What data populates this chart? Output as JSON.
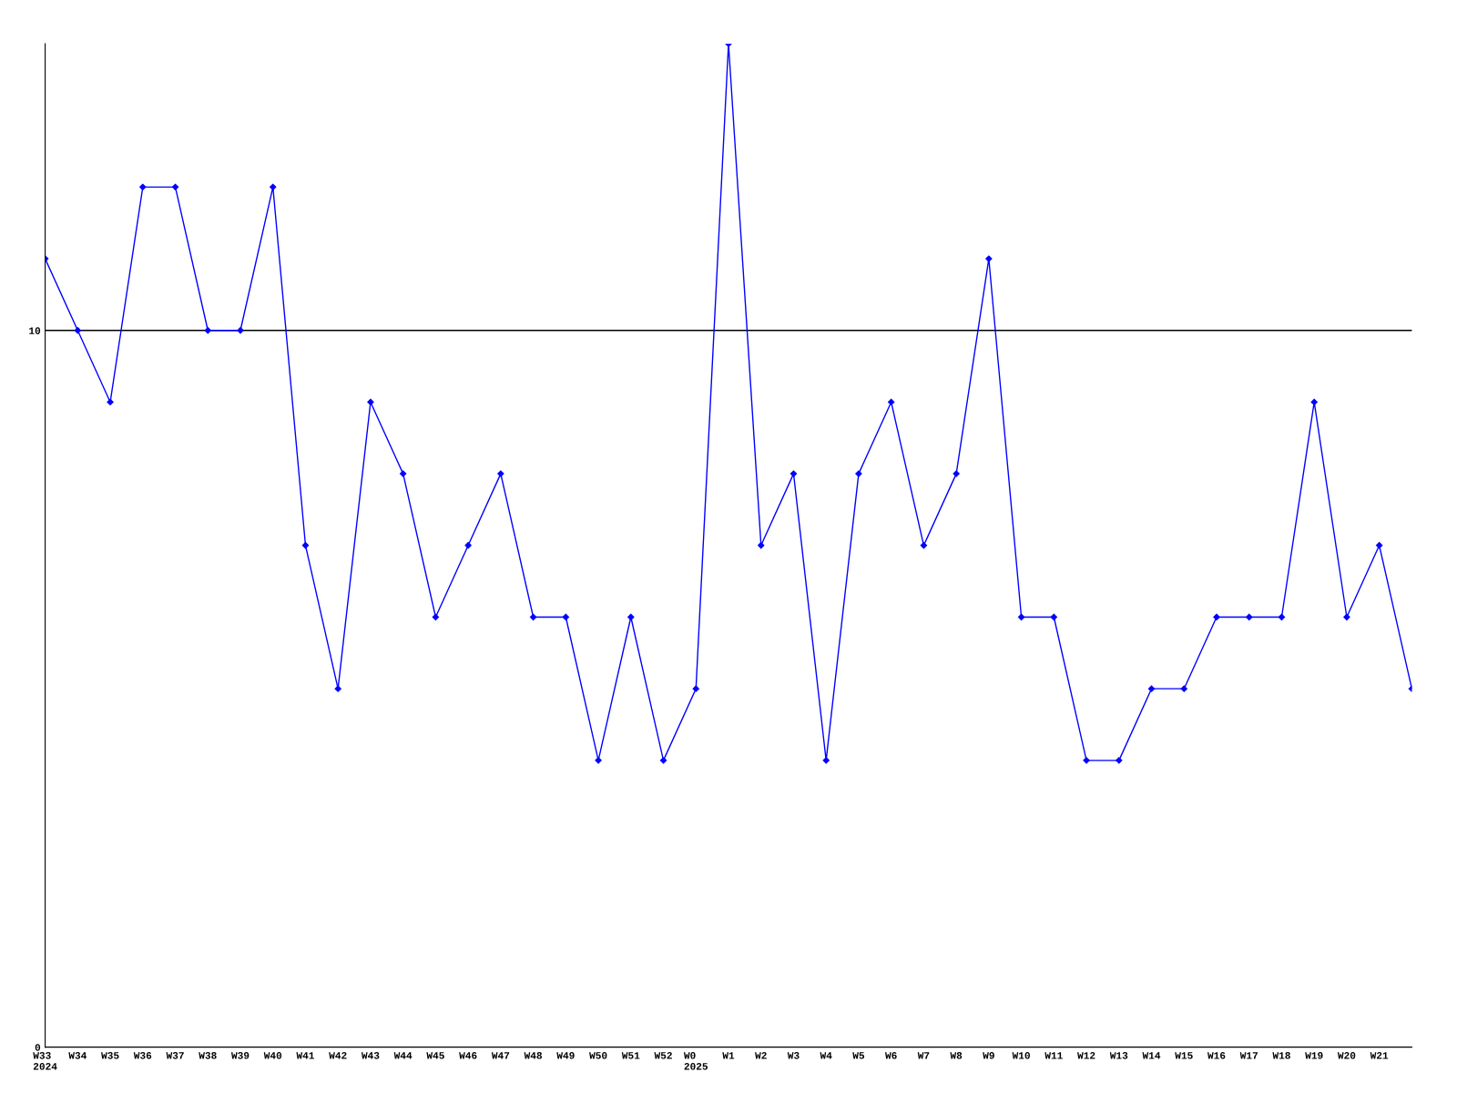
{
  "chart_data": {
    "type": "line",
    "categories": [
      "W33\n2024",
      "W34",
      "W35",
      "W36",
      "W37",
      "W38",
      "W39",
      "W40",
      "W41",
      "W42",
      "W43",
      "W44",
      "W45",
      "W46",
      "W47",
      "W48",
      "W49",
      "W50",
      "W51",
      "W52",
      "W0\n2025",
      "W1",
      "W2",
      "W3",
      "W4",
      "W5",
      "W6",
      "W7",
      "W8",
      "W9",
      "W10",
      "W11",
      "W12",
      "W13",
      "W14",
      "W15",
      "W16",
      "W17",
      "W18",
      "W19",
      "W20",
      "W21",
      null
    ],
    "series": [
      {
        "color": "#0000ff",
        "values": [
          11,
          10,
          9,
          12,
          12,
          10,
          10,
          12,
          7,
          5,
          9,
          8,
          6,
          7,
          8,
          6,
          6,
          4,
          6,
          4,
          5,
          14,
          7,
          8,
          4,
          8,
          9,
          7,
          8,
          11,
          6,
          6,
          4,
          4,
          5,
          5,
          6,
          6,
          6,
          9,
          6,
          7,
          5
        ]
      }
    ],
    "ylim": [
      0,
      14
    ],
    "yticks": [
      0,
      10
    ],
    "grid": "y",
    "marker": "diamond",
    "line_style": "solid"
  }
}
